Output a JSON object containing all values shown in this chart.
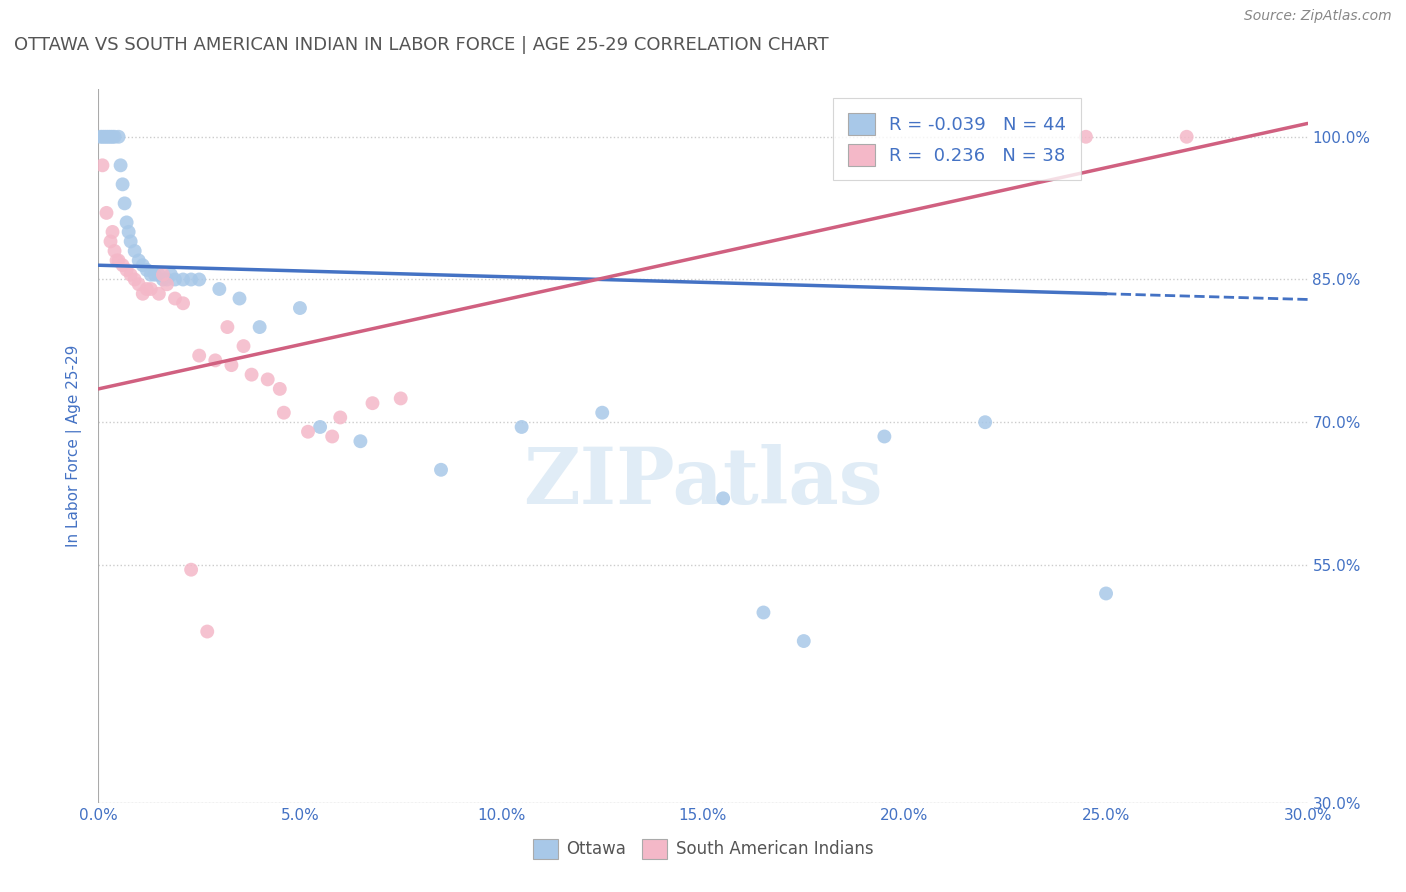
{
  "title": "OTTAWA VS SOUTH AMERICAN INDIAN IN LABOR FORCE | AGE 25-29 CORRELATION CHART",
  "source": "Source: ZipAtlas.com",
  "ylabel": "In Labor Force | Age 25-29",
  "xlim": [
    0.0,
    30.0
  ],
  "ylim": [
    30.0,
    105.0
  ],
  "yticks": [
    30.0,
    55.0,
    70.0,
    85.0,
    100.0
  ],
  "xticks": [
    0.0,
    5.0,
    10.0,
    15.0,
    20.0,
    25.0,
    30.0
  ],
  "ottawa_color": "#a8c8e8",
  "south_american_color": "#f4b8c8",
  "ottawa_line_color": "#4472c4",
  "south_american_line_color": "#d06080",
  "ottawa_R": -0.039,
  "ottawa_N": 44,
  "south_american_R": 0.236,
  "south_american_N": 38,
  "ottawa_x": [
    0.05,
    0.1,
    0.15,
    0.2,
    0.25,
    0.3,
    0.35,
    0.4,
    0.5,
    0.55,
    0.6,
    0.65,
    0.7,
    0.75,
    0.8,
    0.9,
    1.0,
    1.1,
    1.2,
    1.3,
    1.4,
    1.5,
    1.6,
    1.7,
    1.9,
    2.1,
    2.3,
    2.5,
    3.0,
    3.5,
    4.0,
    5.0,
    5.5,
    6.5,
    8.5,
    10.5,
    12.5,
    15.5,
    16.5,
    17.5,
    19.5,
    22.0,
    25.0,
    1.8
  ],
  "ottawa_y": [
    100.0,
    100.0,
    100.0,
    100.0,
    100.0,
    100.0,
    100.0,
    100.0,
    100.0,
    97.0,
    95.0,
    93.0,
    91.0,
    90.0,
    89.0,
    88.0,
    87.0,
    86.5,
    86.0,
    85.5,
    85.5,
    85.5,
    85.0,
    85.0,
    85.0,
    85.0,
    85.0,
    85.0,
    84.0,
    83.0,
    80.0,
    82.0,
    69.5,
    68.0,
    65.0,
    69.5,
    71.0,
    62.0,
    50.0,
    47.0,
    68.5,
    70.0,
    52.0,
    85.5
  ],
  "south_american_x": [
    0.1,
    0.2,
    0.3,
    0.4,
    0.5,
    0.6,
    0.7,
    0.8,
    0.9,
    1.0,
    1.1,
    1.2,
    1.3,
    1.5,
    1.7,
    1.9,
    2.1,
    2.5,
    2.9,
    3.3,
    3.8,
    4.5,
    5.2,
    6.0,
    6.8,
    7.5,
    4.2,
    4.6,
    3.6,
    3.2,
    5.8,
    24.5,
    27.0,
    0.35,
    0.45,
    1.6,
    2.3,
    2.7
  ],
  "south_american_y": [
    97.0,
    92.0,
    89.0,
    88.0,
    87.0,
    86.5,
    86.0,
    85.5,
    85.0,
    84.5,
    83.5,
    84.0,
    84.0,
    83.5,
    84.5,
    83.0,
    82.5,
    77.0,
    76.5,
    76.0,
    75.0,
    73.5,
    69.0,
    70.5,
    72.0,
    72.5,
    74.5,
    71.0,
    78.0,
    80.0,
    68.5,
    100.0,
    100.0,
    90.0,
    87.0,
    85.5,
    54.5,
    48.0
  ],
  "background_color": "#ffffff",
  "grid_color": "#cccccc",
  "watermark_text": "ZIPatlas",
  "legend_R_color": "#4472c4",
  "title_color": "#555555",
  "source_color": "#888888"
}
